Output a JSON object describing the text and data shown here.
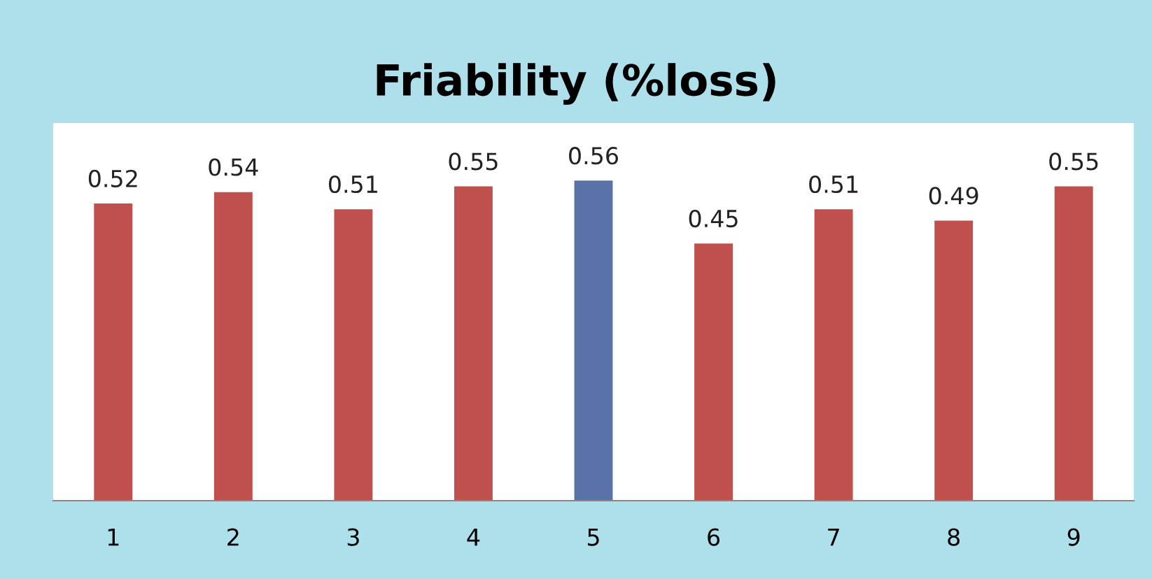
{
  "chart_data": {
    "type": "bar",
    "title": "Friability (%loss)",
    "categories": [
      "1",
      "2",
      "3",
      "4",
      "5",
      "6",
      "7",
      "8",
      "9"
    ],
    "values": [
      0.52,
      0.54,
      0.51,
      0.55,
      0.56,
      0.45,
      0.51,
      0.49,
      0.55
    ],
    "colors": [
      "#c0504d",
      "#c0504d",
      "#c0504d",
      "#c0504d",
      "#5b72a8",
      "#c0504d",
      "#c0504d",
      "#c0504d",
      "#c0504d"
    ],
    "data_labels": true,
    "grid": false,
    "legend": false
  }
}
